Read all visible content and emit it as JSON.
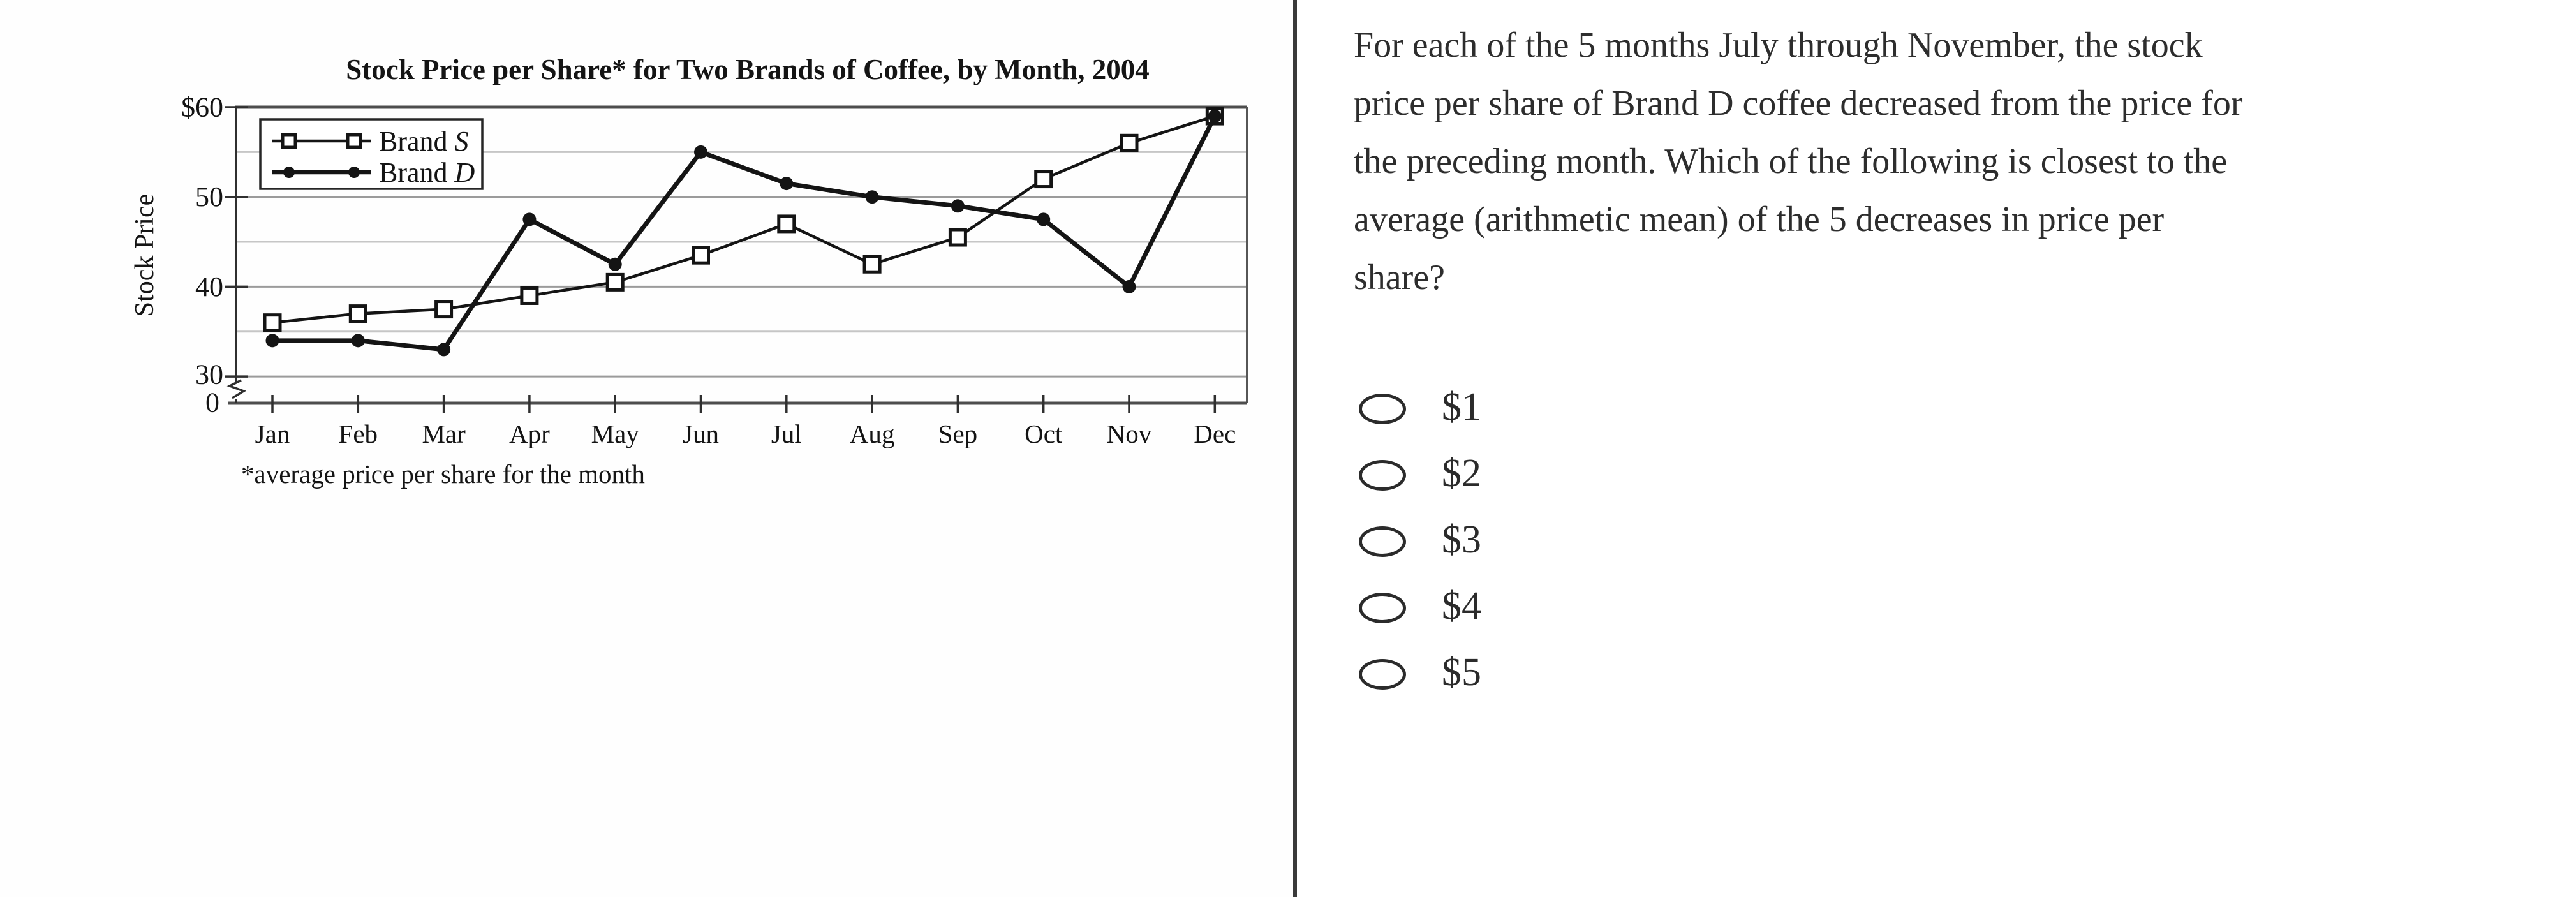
{
  "chart_data": {
    "type": "line",
    "title": "Stock Price per Share* for Two Brands of Coffee, by Month, 2004",
    "ylabel": "Stock Price",
    "xlabel": "",
    "footnote": "*average price per share for the month",
    "categories": [
      "Jan",
      "Feb",
      "Mar",
      "Apr",
      "May",
      "Jun",
      "Jul",
      "Aug",
      "Sep",
      "Oct",
      "Nov",
      "Dec"
    ],
    "series": [
      {
        "name": "Brand S",
        "marker": "open-square",
        "values": [
          36,
          37,
          37.5,
          39,
          40.5,
          43.5,
          47,
          42.5,
          45.5,
          52,
          56,
          59
        ]
      },
      {
        "name": "Brand D",
        "marker": "filled-circle",
        "values": [
          34,
          34,
          33,
          47.5,
          42.5,
          55,
          51.5,
          50,
          49,
          47.5,
          40,
          59
        ]
      }
    ],
    "y_axis": {
      "labeled_ticks": [
        {
          "label": "$60",
          "value": 60
        },
        {
          "label": "50",
          "value": 50
        },
        {
          "label": "40",
          "value": 40
        },
        {
          "label": "30",
          "value": 30
        }
      ],
      "zero_label": "0",
      "minor_gridlines": [
        55,
        45,
        35
      ],
      "axis_break": true,
      "range_shown": [
        30,
        60
      ]
    },
    "grid": true,
    "legend_position": "top-left"
  },
  "question": {
    "text": "For each of the 5 months July through November, the stock\nprice per share of Brand D coffee decreased from the price for\nthe preceding month. Which of the following is closest to the\naverage (arithmetic mean) of the 5 decreases in price per\nshare?"
  },
  "options": [
    {
      "label": "$1"
    },
    {
      "label": "$2"
    },
    {
      "label": "$3"
    },
    {
      "label": "$4"
    },
    {
      "label": "$5"
    }
  ],
  "colors": {
    "ink": "#141414",
    "text": "#2d2d2d",
    "grid_major": "#9b9b9b",
    "grid_minor": "#c6c6c6",
    "frame": "#4d4d4d",
    "divider": "#3a3a3a"
  }
}
